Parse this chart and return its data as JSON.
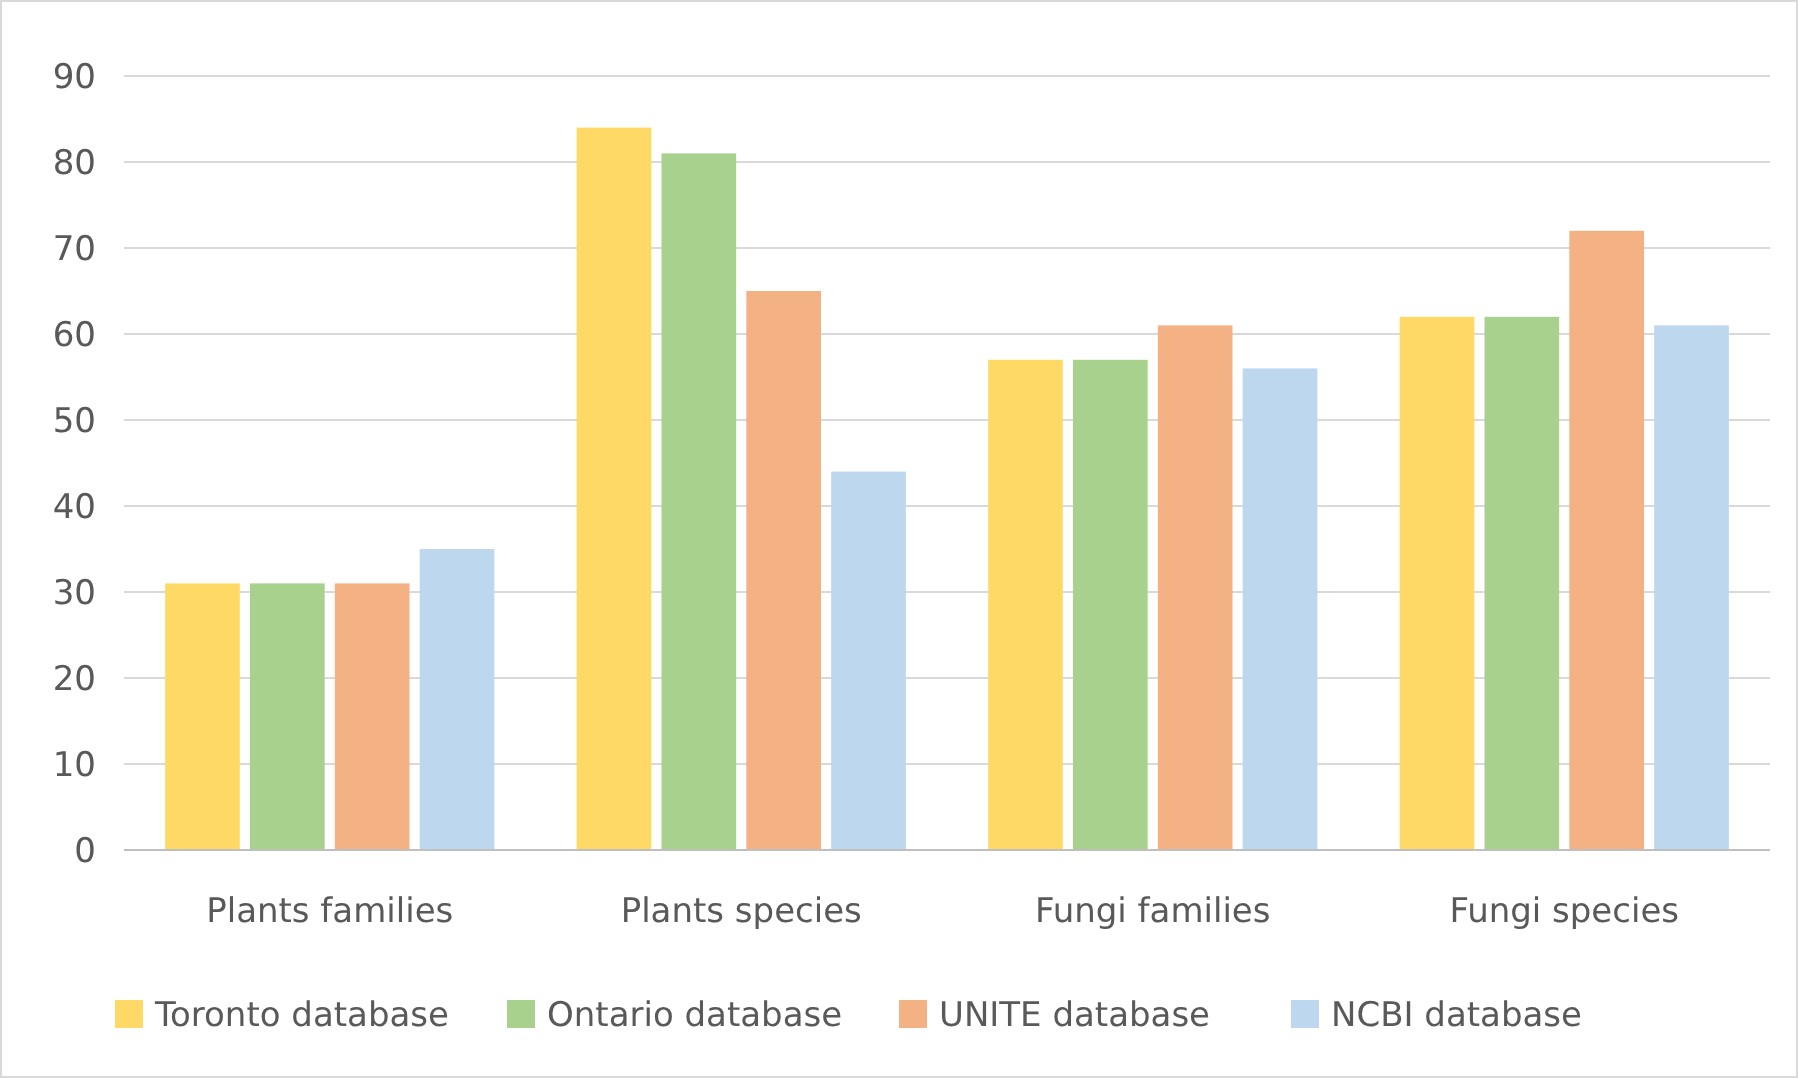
{
  "chart_data": {
    "type": "bar",
    "categories": [
      "Plants families",
      "Plants species",
      "Fungi families",
      "Fungi species"
    ],
    "series": [
      {
        "name": "Toronto database",
        "color": "#ffd966",
        "values": [
          31,
          84,
          57,
          62
        ]
      },
      {
        "name": "Ontario database",
        "color": "#a9d18e",
        "values": [
          31,
          81,
          57,
          62
        ]
      },
      {
        "name": "UNITE database",
        "color": "#f4b183",
        "values": [
          31,
          65,
          61,
          72
        ]
      },
      {
        "name": "NCBI database",
        "color": "#bdd7ee",
        "values": [
          35,
          44,
          56,
          61
        ]
      }
    ],
    "ylim": [
      0,
      90
    ],
    "yticks": [
      0,
      10,
      20,
      30,
      40,
      50,
      60,
      70,
      80,
      90
    ],
    "grid": "y",
    "legend": "bottom"
  }
}
